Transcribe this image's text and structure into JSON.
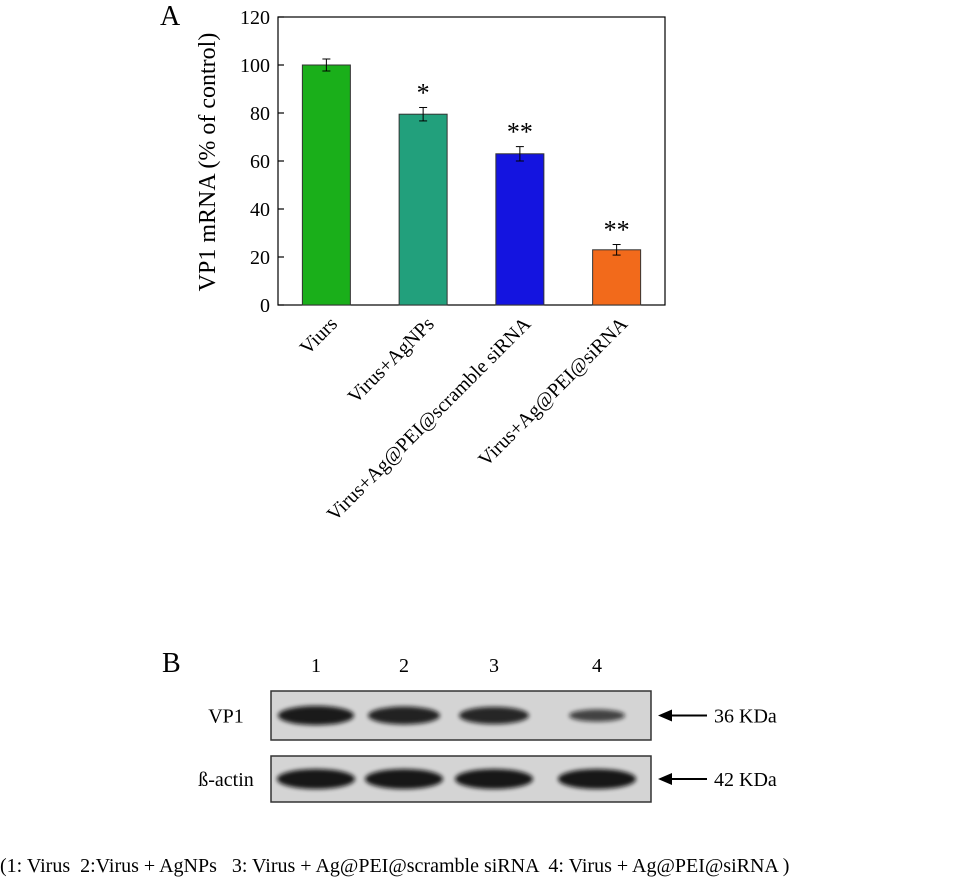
{
  "panel_a_label": "A",
  "panel_b_label": "B",
  "chart_data": {
    "type": "bar",
    "title": "",
    "xlabel": "",
    "ylabel": "VP1 mRNA   (% of control)",
    "ylim": [
      0,
      120
    ],
    "yticks": [
      0,
      20,
      40,
      60,
      80,
      100,
      120
    ],
    "grid": false,
    "categories": [
      "Viurs",
      "Virus+AgNPs",
      "Virus+Ag@PEI@scramble siRNA",
      "Virus+Ag@PEI@siRNA"
    ],
    "values": [
      100,
      79.5,
      63,
      23
    ],
    "errors": [
      2.5,
      2.8,
      3.0,
      2.2
    ],
    "significance": [
      "",
      "*",
      "**",
      "**"
    ],
    "colors": [
      "#1aaf1a",
      "#22a07c",
      "#1414e0",
      "#f26a1b"
    ]
  },
  "blot": {
    "lanes": [
      "1",
      "2",
      "3",
      "4"
    ],
    "rows": [
      {
        "label": "VP1",
        "size": "36 KDa",
        "band_intensity": [
          0.95,
          0.85,
          0.8,
          0.45
        ]
      },
      {
        "label": "ß-actin",
        "size": "42 KDa",
        "band_intensity": [
          1.0,
          1.0,
          1.0,
          1.0
        ]
      }
    ]
  },
  "legend_text": "(1: Virus  2:Virus + AgNPs   3: Virus + Ag@PEI@scramble siRNA  4: Virus + Ag@PEI@siRNA )"
}
